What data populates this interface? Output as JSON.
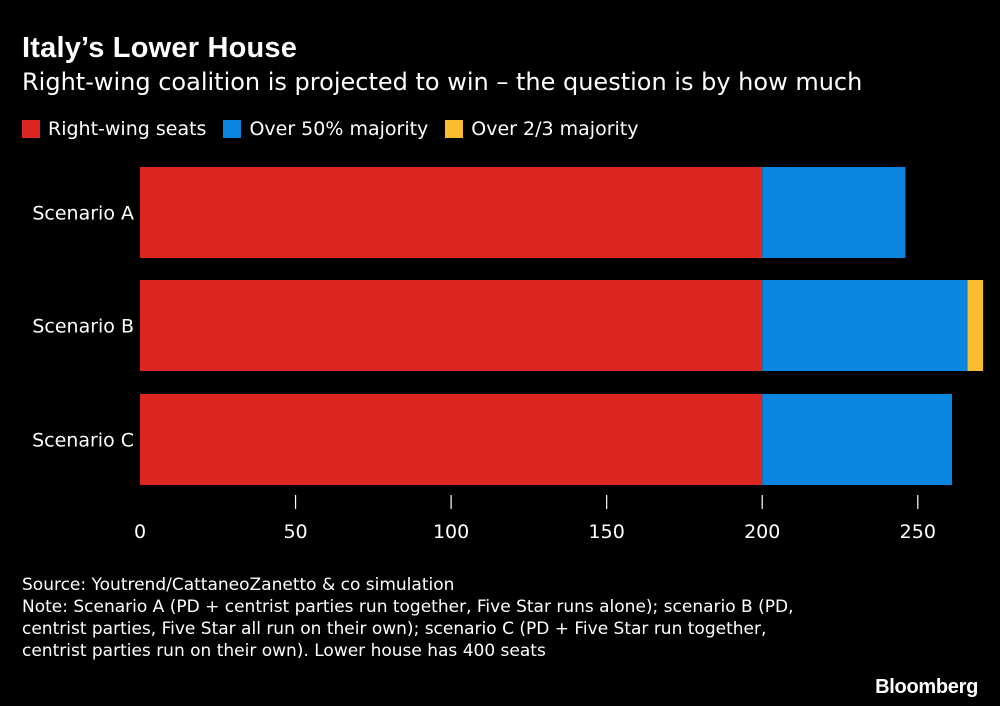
{
  "header": {
    "title": "Italy’s Lower House",
    "subtitle": "Right-wing coalition is projected to win – the question is by how much"
  },
  "legend": [
    {
      "label": "Right-wing seats",
      "color": "#dc261f"
    },
    {
      "label": "Over 50% majority",
      "color": "#0a86e0"
    },
    {
      "label": "Over 2/3 majority",
      "color": "#fbbd2f"
    }
  ],
  "chart_data": {
    "type": "bar",
    "orientation": "horizontal",
    "stacked": true,
    "title": "Italy’s Lower House",
    "categories": [
      "Scenario A",
      "Scenario B",
      "Scenario C"
    ],
    "series": [
      {
        "name": "Right-wing seats",
        "color": "#dc261f",
        "values": [
          200,
          200,
          200
        ]
      },
      {
        "name": "Over 50% majority",
        "color": "#0a86e0",
        "values": [
          46,
          66,
          61
        ]
      },
      {
        "name": "Over 2/3 majority",
        "color": "#fbbd2f",
        "values": [
          0,
          5,
          0
        ]
      }
    ],
    "xticks": [
      0,
      50,
      100,
      150,
      200,
      250
    ],
    "xlim": [
      0,
      270
    ],
    "xlabel": "",
    "ylabel": "",
    "grid": false,
    "legend_position": "top-left"
  },
  "footer": {
    "source": "Source: Youtrend/CattaneoZanetto & co simulation",
    "note": "Note: Scenario A (PD + centrist parties run together, Five Star runs alone); scenario B (PD, centrist parties, Five Star all run on their own); scenario C (PD + Five Star run together, centrist parties run on their own). Lower house has 400 seats"
  },
  "brand": "Bloomberg"
}
